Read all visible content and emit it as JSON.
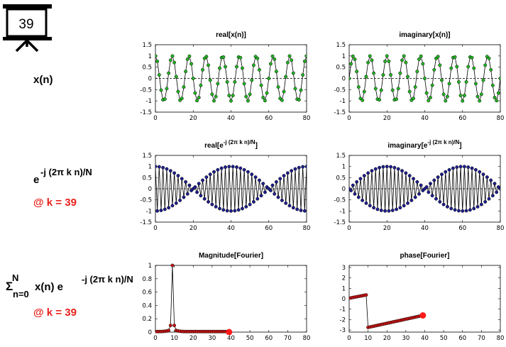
{
  "badge": {
    "number": "39"
  },
  "row_labels": {
    "row1": "x(n)",
    "row2_base": "e",
    "row2_exp": "-j (2π k n)/N",
    "row2_at": "@ k = 39",
    "row3_sigma": "Σ",
    "row3_sub": "n=0",
    "row3_sup": "N",
    "row3_body": "x(n) e",
    "row3_exp": "-j (2π k n)/N",
    "row3_at": "@ k = 39"
  },
  "colors": {
    "green_marker": "#22b422",
    "blue_marker": "#1f1f8f",
    "red_marker": "#c81414",
    "red_highlight": "#ff1a1a",
    "label_red": "#e8211b"
  },
  "chart_data": [
    {
      "id": "real_x",
      "type": "line",
      "title": "real[x(n)]",
      "xlim": [
        0,
        80
      ],
      "ylim": [
        -1.5,
        1.5
      ],
      "xticks": [
        0,
        20,
        40,
        60,
        80
      ],
      "yticks": [
        1.5,
        1,
        0.5,
        0,
        -0.5,
        -1,
        -1.5
      ],
      "ytick_labels": [
        "1.5",
        "1",
        "0.5",
        "0",
        "-0.5",
        "-1",
        "-1.5"
      ],
      "signal": "cos",
      "k": 9,
      "N": 80,
      "n_range": [
        0,
        80
      ],
      "marker_color": "#22b422"
    },
    {
      "id": "imag_x",
      "type": "line",
      "title": "imaginary[x(n)]",
      "xlim": [
        0,
        80
      ],
      "ylim": [
        -1.5,
        1.5
      ],
      "xticks": [
        0,
        20,
        40,
        60,
        80
      ],
      "yticks": [
        1.5,
        1,
        0.5,
        0,
        -0.5,
        -1,
        -1.5
      ],
      "ytick_labels": [
        "1.5",
        "1",
        "0.5",
        "0",
        "-0.5",
        "-1",
        "-1.5"
      ],
      "signal": "sin",
      "k": 9,
      "N": 80,
      "n_range": [
        0,
        80
      ],
      "marker_color": "#22b422"
    },
    {
      "id": "real_e",
      "type": "line",
      "title_base": "real[e",
      "title_sup": "-j (2π k n)/N",
      "title_end": "]",
      "xlim": [
        0,
        80
      ],
      "ylim": [
        -1.5,
        1.5
      ],
      "xticks": [
        0,
        20,
        40,
        60,
        80
      ],
      "yticks": [
        1.5,
        1,
        0.5,
        0,
        -0.5,
        -1,
        -1.5
      ],
      "ytick_labels": [
        "1.5",
        "1",
        "0.5",
        "0",
        "-0.5",
        "-1",
        "-1.5"
      ],
      "signal": "cos",
      "k": 39,
      "N": 80,
      "n_range": [
        0,
        80
      ],
      "marker_color": "#1f1f8f"
    },
    {
      "id": "imag_e",
      "type": "line",
      "title_base": "imaginary[e",
      "title_sup": "-j (2π k n)/N",
      "title_end": "]",
      "xlim": [
        0,
        80
      ],
      "ylim": [
        -1.5,
        1.5
      ],
      "xticks": [
        0,
        20,
        40,
        60,
        80
      ],
      "yticks": [
        1.5,
        1,
        0.5,
        0,
        -0.5,
        -1,
        -1.5
      ],
      "ytick_labels": [
        "1.5",
        "1",
        "0.5",
        "0",
        "-0.5",
        "-1",
        "-1.5"
      ],
      "signal": "-sin",
      "k": 39,
      "N": 80,
      "n_range": [
        0,
        80
      ],
      "marker_color": "#1f1f8f"
    },
    {
      "id": "mag",
      "type": "line",
      "title": "Magnitude[Fourier]",
      "xlim": [
        0,
        80
      ],
      "ylim": [
        0,
        1
      ],
      "xticks": [
        0,
        10,
        20,
        30,
        40,
        50,
        60,
        70,
        80
      ],
      "yticks": [
        1,
        0.8,
        0.6,
        0.4,
        0.2,
        0
      ],
      "ytick_labels": [
        "1",
        "0.8",
        "0.6",
        "0.4",
        "0.2",
        "0"
      ],
      "signal": "dft_mag",
      "peak_k": 9,
      "N": 80,
      "k_range": [
        0,
        39
      ],
      "marker_color": "#c81414",
      "highlight": {
        "x": 39,
        "y": 0.0
      }
    },
    {
      "id": "phase",
      "type": "line",
      "title": "phase[Fourier]",
      "xlim": [
        0,
        80
      ],
      "ylim": [
        -3.2,
        3.2
      ],
      "xticks": [
        0,
        10,
        20,
        30,
        40,
        50,
        60,
        70,
        80
      ],
      "yticks": [
        3,
        2,
        1,
        0,
        -1,
        -2,
        -3
      ],
      "ytick_labels": [
        "3",
        "2",
        "1",
        "0",
        "-1",
        "-2",
        "-3"
      ],
      "signal": "dft_phase",
      "peak_k": 9,
      "N": 80,
      "k_range": [
        0,
        39
      ],
      "marker_color": "#c81414",
      "highlight": {
        "x": 39,
        "y": -1.6
      }
    }
  ]
}
